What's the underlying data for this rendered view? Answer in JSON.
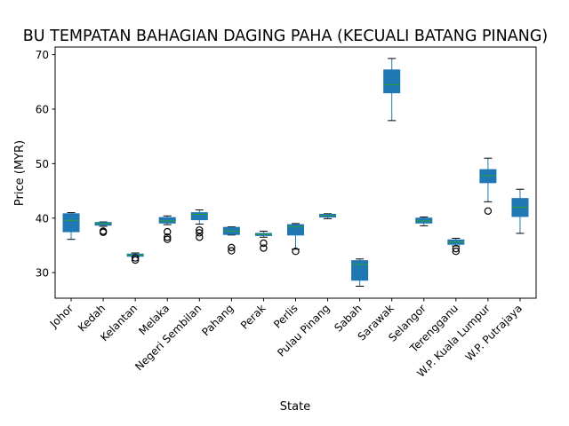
{
  "chart_data": {
    "type": "box",
    "title": "BU TEMPATAN BAHAGIAN DAGING PAHA (KECUALI BATANG PINANG)",
    "xlabel": "State",
    "ylabel": "Price (MYR)",
    "ylim": [
      25.3,
      71.4
    ],
    "yticks": [
      30,
      40,
      50,
      60,
      70
    ],
    "grid": false,
    "box_color": "#1f77b4",
    "median_color": "#2ca02c",
    "categories": [
      "Johor",
      "Kedah",
      "Kelantan",
      "Melaka",
      "Negeri Sembilan",
      "Pahang",
      "Perak",
      "Perlis",
      "Pulau Pinang",
      "Sabah",
      "Sarawak",
      "Selangor",
      "Terengganu",
      "W.P. Kuala Lumpur",
      "W.P. Putrajaya"
    ],
    "boxes": [
      {
        "q1": 37.5,
        "median": 39.6,
        "q3": 40.8,
        "whislo": 36.1,
        "whishi": 41.0,
        "fliers": []
      },
      {
        "q1": 38.7,
        "median": 39.0,
        "q3": 39.2,
        "whislo": 38.5,
        "whishi": 39.3,
        "fliers": [
          37.4,
          37.6
        ]
      },
      {
        "q1": 33.0,
        "median": 33.2,
        "q3": 33.4,
        "whislo": 32.9,
        "whishi": 33.6,
        "fliers": [
          32.3,
          32.7
        ]
      },
      {
        "q1": 39.1,
        "median": 39.5,
        "q3": 40.1,
        "whislo": 38.8,
        "whishi": 40.4,
        "fliers": [
          36.1,
          36.5,
          37.5
        ]
      },
      {
        "q1": 39.7,
        "median": 40.7,
        "q3": 41.0,
        "whislo": 38.9,
        "whishi": 41.5,
        "fliers": [
          36.5,
          37.3,
          37.8
        ]
      },
      {
        "q1": 37.0,
        "median": 37.6,
        "q3": 38.3,
        "whislo": 36.9,
        "whishi": 38.4,
        "fliers": [
          34.0,
          34.6
        ]
      },
      {
        "q1": 36.8,
        "median": 37.0,
        "q3": 37.2,
        "whislo": 36.5,
        "whishi": 37.6,
        "fliers": [
          34.5,
          35.4
        ]
      },
      {
        "q1": 36.9,
        "median": 38.4,
        "q3": 38.8,
        "whislo": 34.3,
        "whishi": 39.0,
        "fliers": [
          33.9
        ]
      },
      {
        "q1": 40.2,
        "median": 40.5,
        "q3": 40.7,
        "whislo": 39.9,
        "whishi": 40.8,
        "fliers": []
      },
      {
        "q1": 28.6,
        "median": 31.5,
        "q3": 32.2,
        "whislo": 27.5,
        "whishi": 32.5,
        "fliers": []
      },
      {
        "q1": 63.0,
        "median": 64.5,
        "q3": 67.2,
        "whislo": 57.9,
        "whishi": 69.3,
        "fliers": []
      },
      {
        "q1": 39.1,
        "median": 39.5,
        "q3": 40.0,
        "whislo": 38.6,
        "whishi": 40.2,
        "fliers": []
      },
      {
        "q1": 35.2,
        "median": 35.6,
        "q3": 36.0,
        "whislo": 34.9,
        "whishi": 36.3,
        "fliers": [
          33.9,
          34.4
        ]
      },
      {
        "q1": 46.5,
        "median": 47.8,
        "q3": 48.9,
        "whislo": 43.0,
        "whishi": 51.0,
        "fliers": [
          41.3
        ]
      },
      {
        "q1": 40.3,
        "median": 42.0,
        "q3": 43.6,
        "whislo": 37.2,
        "whishi": 45.3,
        "fliers": []
      }
    ]
  }
}
